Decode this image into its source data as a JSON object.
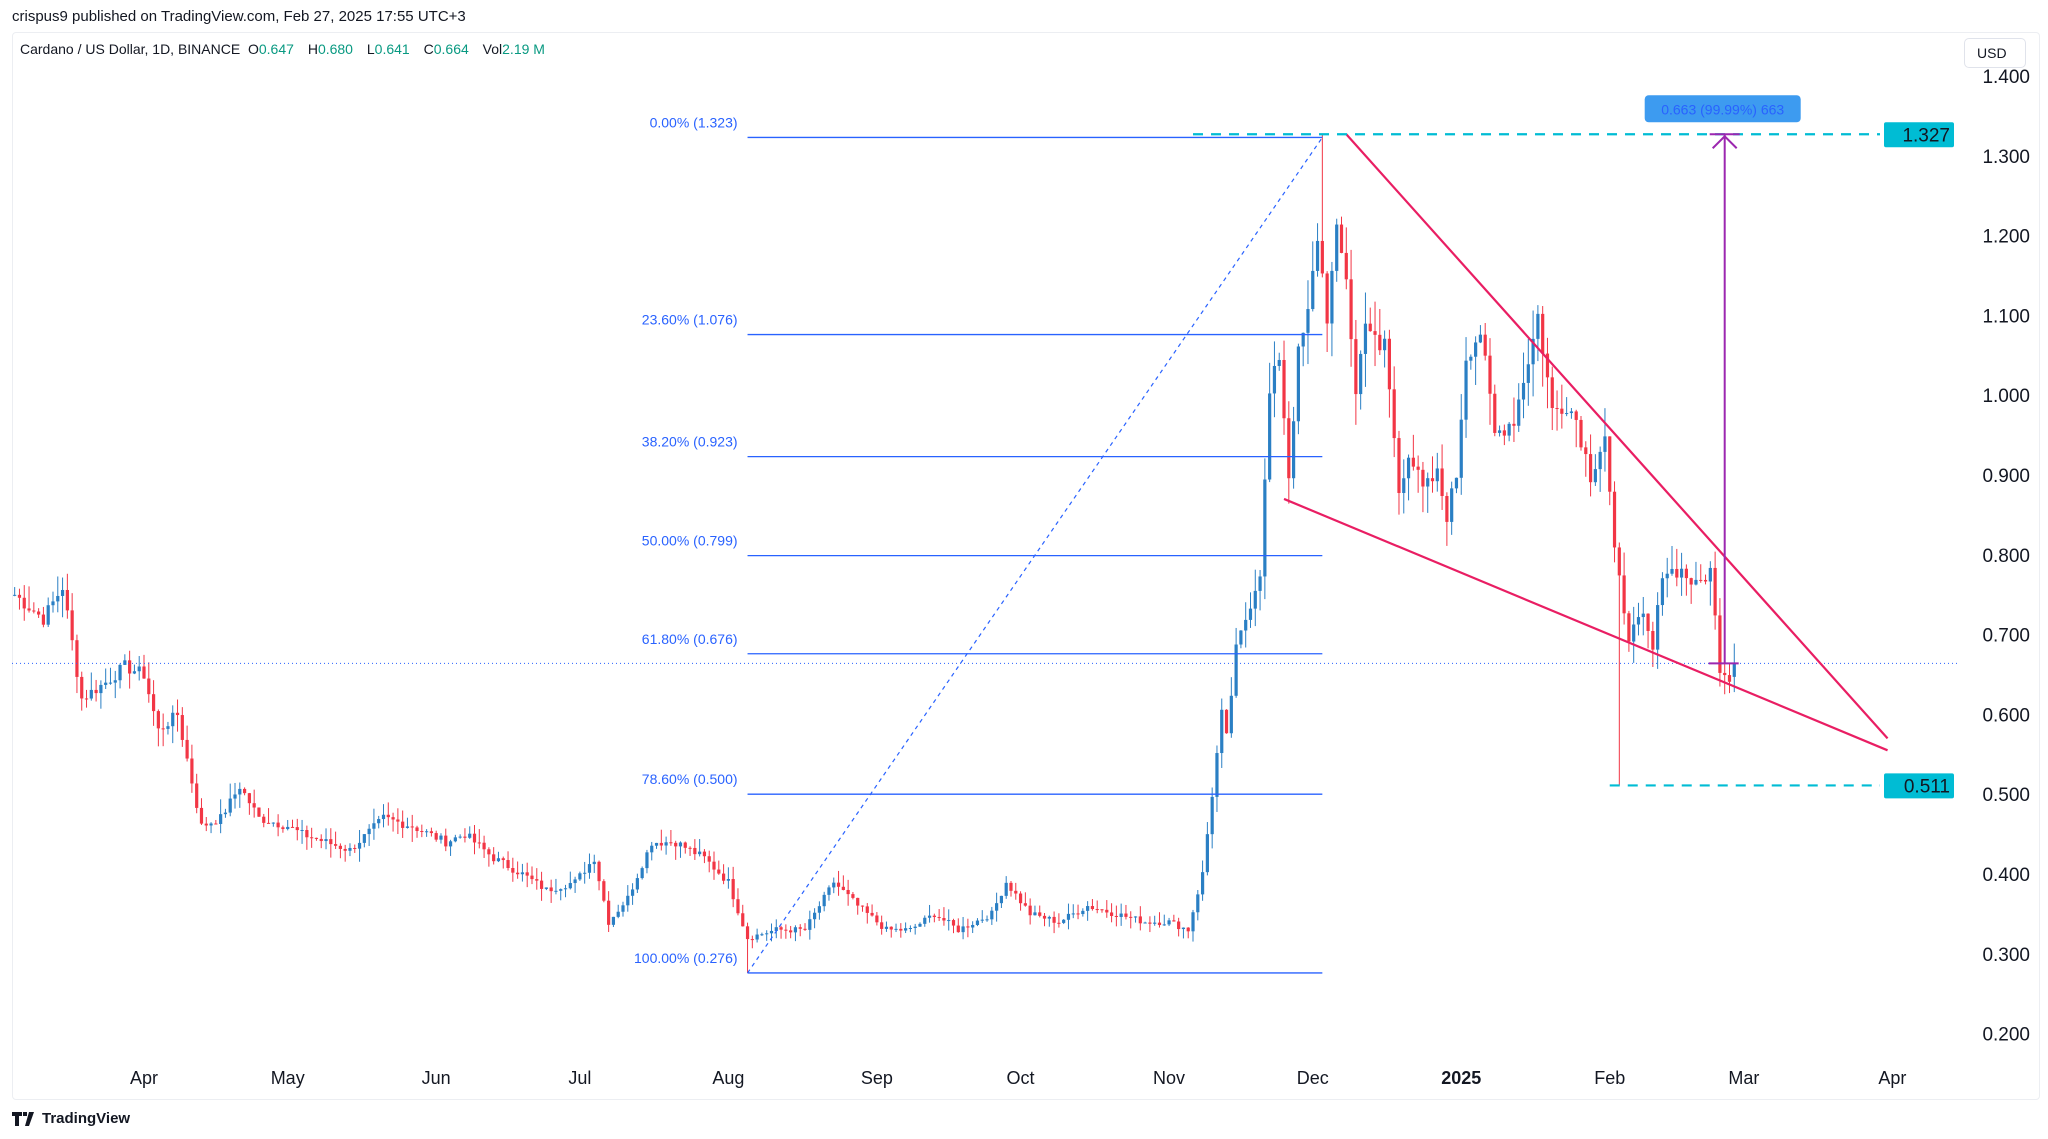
{
  "header": {
    "published": "crispus9 published on TradingView.com, Feb 27, 2025 17:55 UTC+3"
  },
  "legend": {
    "symbol": "Cardano / US Dollar, 1D, BINANCE",
    "o_label": "O",
    "o": "0.647",
    "h_label": "H",
    "h": "0.680",
    "l_label": "L",
    "l": "0.641",
    "c_label": "C",
    "c": "0.664",
    "vol_label": "Vol",
    "vol": "2.19 M"
  },
  "currency": "USD",
  "footer": {
    "brand": "TradingView"
  },
  "colors": {
    "up": "#2a7fc4",
    "down": "#f23645",
    "fib": "#2962ff",
    "wedge": "#e91e63",
    "target": "#00bcd4",
    "arrow": "#9c27b0",
    "tooltip": "#3d9bf0"
  },
  "chart_data": {
    "type": "candlestick",
    "ylim": [
      0.2,
      1.4
    ],
    "y_ticks": [
      "1.400",
      "1.300",
      "1.200",
      "1.100",
      "1.000",
      "0.900",
      "0.800",
      "0.700",
      "0.600",
      "0.500",
      "0.400",
      "0.300",
      "0.200"
    ],
    "x_ticks": [
      "Apr",
      "May",
      "Jun",
      "Jul",
      "Aug",
      "Sep",
      "Oct",
      "Nov",
      "Dec",
      "2025",
      "Feb",
      "Mar",
      "Apr"
    ],
    "x_tick_dates": [
      "2024-04-01",
      "2024-05-01",
      "2024-06-01",
      "2024-07-01",
      "2024-08-01",
      "2024-09-01",
      "2024-10-01",
      "2024-11-01",
      "2024-12-01",
      "2025-01-01",
      "2025-02-01",
      "2025-03-01",
      "2025-04-01"
    ],
    "closes": [
      [
        "2024-03-05",
        0.75
      ],
      [
        "2024-03-11",
        0.72
      ],
      [
        "2024-03-15",
        0.76
      ],
      [
        "2024-03-19",
        0.62
      ],
      [
        "2024-03-24",
        0.64
      ],
      [
        "2024-03-28",
        0.66
      ],
      [
        "2024-04-01",
        0.65
      ],
      [
        "2024-04-04",
        0.58
      ],
      [
        "2024-04-08",
        0.6
      ],
      [
        "2024-04-13",
        0.46
      ],
      [
        "2024-04-17",
        0.47
      ],
      [
        "2024-04-21",
        0.51
      ],
      [
        "2024-04-25",
        0.47
      ],
      [
        "2024-05-01",
        0.46
      ],
      [
        "2024-05-04",
        0.45
      ],
      [
        "2024-05-09",
        0.44
      ],
      [
        "2024-05-14",
        0.43
      ],
      [
        "2024-05-21",
        0.47
      ],
      [
        "2024-05-27",
        0.46
      ],
      [
        "2024-06-03",
        0.44
      ],
      [
        "2024-06-07",
        0.45
      ],
      [
        "2024-06-13",
        0.42
      ],
      [
        "2024-06-19",
        0.4
      ],
      [
        "2024-06-24",
        0.38
      ],
      [
        "2024-06-30",
        0.39
      ],
      [
        "2024-07-04",
        0.42
      ],
      [
        "2024-07-07",
        0.34
      ],
      [
        "2024-07-11",
        0.37
      ],
      [
        "2024-07-16",
        0.44
      ],
      [
        "2024-07-21",
        0.44
      ],
      [
        "2024-07-27",
        0.42
      ],
      [
        "2024-08-01",
        0.39
      ],
      [
        "2024-08-05",
        0.32
      ],
      [
        "2024-08-11",
        0.33
      ],
      [
        "2024-08-17",
        0.33
      ],
      [
        "2024-08-23",
        0.39
      ],
      [
        "2024-08-28",
        0.36
      ],
      [
        "2024-09-03",
        0.33
      ],
      [
        "2024-09-08",
        0.33
      ],
      [
        "2024-09-13",
        0.35
      ],
      [
        "2024-09-18",
        0.33
      ],
      [
        "2024-09-25",
        0.35
      ],
      [
        "2024-09-28",
        0.39
      ],
      [
        "2024-10-03",
        0.35
      ],
      [
        "2024-10-09",
        0.34
      ],
      [
        "2024-10-15",
        0.36
      ],
      [
        "2024-10-21",
        0.35
      ],
      [
        "2024-10-27",
        0.34
      ],
      [
        "2024-11-01",
        0.34
      ],
      [
        "2024-11-05",
        0.33
      ],
      [
        "2024-11-08",
        0.4
      ],
      [
        "2024-11-10",
        0.5
      ],
      [
        "2024-11-12",
        0.6
      ],
      [
        "2024-11-13",
        0.57
      ],
      [
        "2024-11-15",
        0.68
      ],
      [
        "2024-11-17",
        0.72
      ],
      [
        "2024-11-20",
        0.78
      ],
      [
        "2024-11-22",
        1.0
      ],
      [
        "2024-11-24",
        1.05
      ],
      [
        "2024-11-26",
        0.9
      ],
      [
        "2024-11-28",
        1.05
      ],
      [
        "2024-11-30",
        1.1
      ],
      [
        "2024-12-02",
        1.2
      ],
      [
        "2024-12-04",
        1.1
      ],
      [
        "2024-12-06",
        1.2
      ],
      [
        "2024-12-08",
        1.15
      ],
      [
        "2024-12-10",
        1.0
      ],
      [
        "2024-12-12",
        1.1
      ],
      [
        "2024-12-15",
        1.05
      ],
      [
        "2024-12-16",
        1.07
      ],
      [
        "2024-12-19",
        0.88
      ],
      [
        "2024-12-21",
        0.93
      ],
      [
        "2024-12-24",
        0.88
      ],
      [
        "2024-12-27",
        0.9
      ],
      [
        "2024-12-29",
        0.85
      ],
      [
        "2024-12-31",
        0.9
      ],
      [
        "2025-01-02",
        1.05
      ],
      [
        "2025-01-05",
        1.08
      ],
      [
        "2025-01-08",
        0.95
      ],
      [
        "2025-01-12",
        0.97
      ],
      [
        "2025-01-16",
        1.07
      ],
      [
        "2025-01-17",
        1.1
      ],
      [
        "2025-01-20",
        0.98
      ],
      [
        "2025-01-23",
        0.99
      ],
      [
        "2025-01-25",
        0.97
      ],
      [
        "2025-01-28",
        0.9
      ],
      [
        "2025-01-31",
        0.95
      ],
      [
        "2025-02-02",
        0.8
      ],
      [
        "2025-02-05",
        0.7
      ],
      [
        "2025-02-08",
        0.72
      ],
      [
        "2025-02-10",
        0.68
      ],
      [
        "2025-02-12",
        0.78
      ],
      [
        "2025-02-16",
        0.78
      ],
      [
        "2025-02-19",
        0.76
      ],
      [
        "2025-02-22",
        0.78
      ],
      [
        "2025-02-24",
        0.66
      ],
      [
        "2025-02-26",
        0.647
      ],
      [
        "2025-02-27",
        0.664
      ]
    ],
    "extremes": [
      [
        "2024-08-05",
        "low",
        0.276
      ],
      [
        "2024-12-03",
        "high",
        1.327
      ],
      [
        "2025-02-03",
        "low",
        0.511
      ]
    ],
    "current_price": 0.664,
    "fibonacci": {
      "from": [
        "2024-08-05",
        0.276
      ],
      "to": [
        "2024-12-03",
        1.323
      ],
      "end_date": "2024-12-03",
      "levels": [
        {
          "label": "0.00% (1.323)",
          "price": 1.323
        },
        {
          "label": "23.60% (1.076)",
          "price": 1.076
        },
        {
          "label": "38.20% (0.923)",
          "price": 0.923
        },
        {
          "label": "50.00% (0.799)",
          "price": 0.799
        },
        {
          "label": "61.80% (0.676)",
          "price": 0.676
        },
        {
          "label": "78.60% (0.500)",
          "price": 0.5
        },
        {
          "label": "100.00% (0.276)",
          "price": 0.276
        }
      ]
    },
    "wedge": {
      "upper": [
        [
          "2024-12-08",
          1.327
        ],
        [
          "2025-03-31",
          0.57
        ]
      ],
      "lower": [
        [
          "2024-11-25",
          0.87
        ],
        [
          "2025-03-31",
          0.555
        ]
      ]
    },
    "targets": [
      {
        "label": "1.327",
        "price": 1.327,
        "from": "2024-11-06"
      },
      {
        "label": "0.511",
        "price": 0.511,
        "from": "2025-02-01"
      }
    ],
    "measure": {
      "date": "2025-02-25",
      "from": 0.664,
      "to": 1.327,
      "label": "0.663 (99.99%) 663"
    }
  }
}
